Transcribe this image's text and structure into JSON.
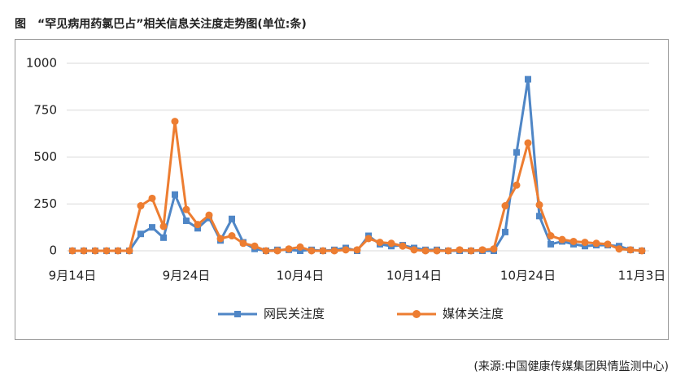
{
  "chart_data": {
    "type": "line",
    "title": "图　“罕见病用药氯巴占”相关信息关注度走势图(单位:条)",
    "source": "(来源:中国健康传媒集团舆情监测中心)",
    "categories": [
      "9月14日",
      null,
      null,
      null,
      null,
      null,
      null,
      null,
      null,
      null,
      "9月24日",
      null,
      null,
      null,
      null,
      null,
      null,
      null,
      null,
      null,
      "10月4日",
      null,
      null,
      null,
      null,
      null,
      null,
      null,
      null,
      null,
      "10月14日",
      null,
      null,
      null,
      null,
      null,
      null,
      null,
      null,
      null,
      "10月24日",
      null,
      null,
      null,
      null,
      null,
      null,
      null,
      null,
      null,
      "11月3日"
    ],
    "series": [
      {
        "name": "网民关注度",
        "color": "#4f86c6",
        "marker": "square",
        "values": [
          0,
          0,
          0,
          0,
          0,
          0,
          90,
          125,
          70,
          300,
          160,
          120,
          175,
          55,
          170,
          45,
          10,
          0,
          5,
          5,
          0,
          5,
          0,
          5,
          15,
          0,
          80,
          35,
          25,
          30,
          15,
          5,
          5,
          0,
          0,
          0,
          0,
          0,
          100,
          525,
          915,
          185,
          35,
          50,
          35,
          25,
          30,
          30,
          25,
          5,
          0
        ]
      },
      {
        "name": "媒体关注度",
        "color": "#ed7d31",
        "marker": "circle",
        "values": [
          0,
          0,
          0,
          0,
          0,
          0,
          240,
          280,
          130,
          690,
          220,
          140,
          190,
          65,
          80,
          40,
          25,
          0,
          0,
          10,
          20,
          0,
          0,
          0,
          5,
          5,
          65,
          45,
          40,
          25,
          5,
          0,
          0,
          0,
          5,
          0,
          5,
          10,
          240,
          350,
          575,
          245,
          80,
          60,
          50,
          45,
          40,
          35,
          10,
          5,
          0
        ]
      }
    ],
    "ylim": [
      0,
      1000
    ],
    "yticks": [
      0,
      250,
      500,
      750,
      1000
    ],
    "grid": true
  }
}
